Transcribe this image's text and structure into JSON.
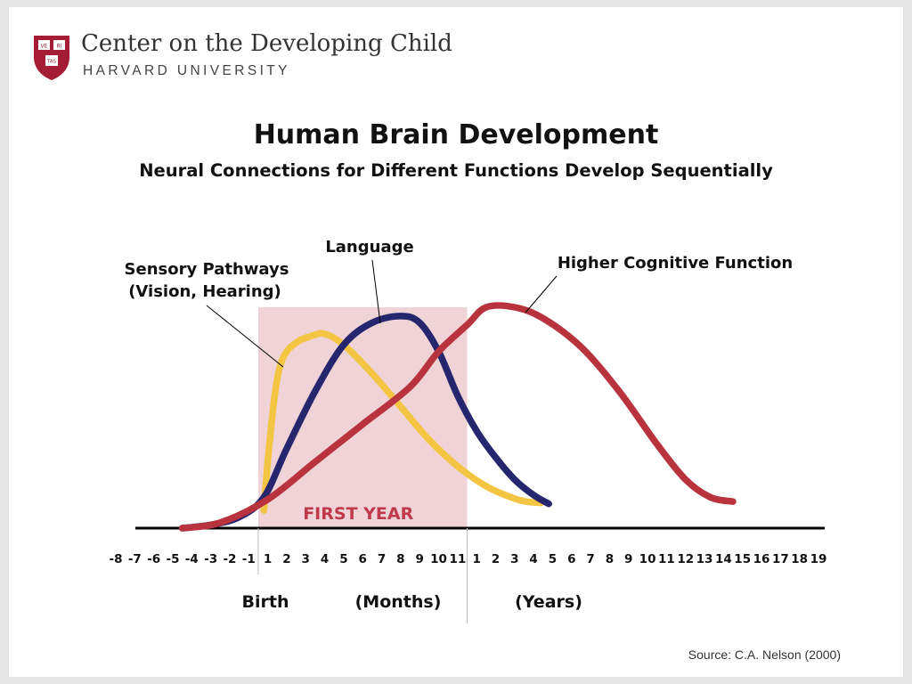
{
  "header": {
    "org_name": "Center on the Developing Child",
    "org_sub": "HARVARD UNIVERSITY",
    "shield_text": [
      "VE",
      "RI",
      "TAS"
    ]
  },
  "source": "Source: C.A. Nelson (2000)",
  "colors": {
    "sensory": "#f4c542",
    "language": "#26266e",
    "cognitive": "#b8333d",
    "first_year_shade": "#efd3d6",
    "first_year_text": "#c0394a",
    "shield": "#a41d34"
  },
  "chart_data": {
    "type": "line",
    "title": "Human Brain Development",
    "subtitle": "Neural Connections for Different Functions Develop Sequentially",
    "x_ticks": [
      {
        "label": "-8",
        "group": "prenatal"
      },
      {
        "label": "-7",
        "group": "prenatal"
      },
      {
        "label": "-6",
        "group": "prenatal"
      },
      {
        "label": "-5",
        "group": "prenatal"
      },
      {
        "label": "-4",
        "group": "prenatal"
      },
      {
        "label": "-3",
        "group": "prenatal"
      },
      {
        "label": "-2",
        "group": "prenatal"
      },
      {
        "label": "-1",
        "group": "prenatal"
      },
      {
        "label": "1",
        "group": "months"
      },
      {
        "label": "2",
        "group": "months"
      },
      {
        "label": "3",
        "group": "months"
      },
      {
        "label": "4",
        "group": "months"
      },
      {
        "label": "5",
        "group": "months"
      },
      {
        "label": "6",
        "group": "months"
      },
      {
        "label": "7",
        "group": "months"
      },
      {
        "label": "8",
        "group": "months"
      },
      {
        "label": "9",
        "group": "months"
      },
      {
        "label": "10",
        "group": "months"
      },
      {
        "label": "11",
        "group": "months"
      },
      {
        "label": "1",
        "group": "years"
      },
      {
        "label": "2",
        "group": "years"
      },
      {
        "label": "3",
        "group": "years"
      },
      {
        "label": "4",
        "group": "years"
      },
      {
        "label": "5",
        "group": "years"
      },
      {
        "label": "6",
        "group": "years"
      },
      {
        "label": "7",
        "group": "years"
      },
      {
        "label": "8",
        "group": "years"
      },
      {
        "label": "9",
        "group": "years"
      },
      {
        "label": "10",
        "group": "years"
      },
      {
        "label": "11",
        "group": "years"
      },
      {
        "label": "12",
        "group": "years"
      },
      {
        "label": "13",
        "group": "years"
      },
      {
        "label": "14",
        "group": "years"
      },
      {
        "label": "15",
        "group": "years"
      },
      {
        "label": "16",
        "group": "years"
      },
      {
        "label": "17",
        "group": "years"
      },
      {
        "label": "18",
        "group": "years"
      },
      {
        "label": "19",
        "group": "years"
      }
    ],
    "axis_labels": {
      "birth": "Birth",
      "months": "(Months)",
      "years": "(Years)"
    },
    "shaded_region": {
      "label": "FIRST YEAR",
      "from_tick": 8,
      "to_tick": 19
    },
    "ylim": [
      0,
      100
    ],
    "series": [
      {
        "name": "Sensory Pathways",
        "name_line2": "(Vision, Hearing)",
        "color_key": "sensory",
        "points": [
          [
            7.8,
            8
          ],
          [
            8.0,
            30
          ],
          [
            8.4,
            62
          ],
          [
            8.8,
            77
          ],
          [
            9.5,
            84
          ],
          [
            10.3,
            87
          ],
          [
            11.0,
            88
          ],
          [
            12.0,
            83
          ],
          [
            13.5,
            70
          ],
          [
            15.0,
            55
          ],
          [
            16.5,
            40
          ],
          [
            18.0,
            28
          ],
          [
            19.5,
            19
          ],
          [
            20.8,
            14
          ],
          [
            21.6,
            12
          ],
          [
            22.4,
            11.5
          ]
        ]
      },
      {
        "name": "Language",
        "color_key": "language",
        "points": [
          [
            3.5,
            0
          ],
          [
            5.0,
            1.5
          ],
          [
            6.5,
            5
          ],
          [
            7.8,
            14
          ],
          [
            9.0,
            36
          ],
          [
            10.5,
            62
          ],
          [
            12.0,
            83
          ],
          [
            13.5,
            93
          ],
          [
            15.0,
            96
          ],
          [
            16.0,
            93
          ],
          [
            17.0,
            80
          ],
          [
            18.0,
            60
          ],
          [
            19.0,
            44
          ],
          [
            20.0,
            32
          ],
          [
            21.0,
            22
          ],
          [
            22.0,
            15
          ],
          [
            22.8,
            11
          ]
        ]
      },
      {
        "name": "Higher Cognitive Function",
        "color_key": "cognitive",
        "points": [
          [
            3.5,
            0
          ],
          [
            5.5,
            2.5
          ],
          [
            8.0,
            13
          ],
          [
            10.5,
            30
          ],
          [
            13.0,
            47
          ],
          [
            15.5,
            64
          ],
          [
            17.0,
            80
          ],
          [
            18.5,
            92
          ],
          [
            19.5,
            100
          ],
          [
            21.0,
            100
          ],
          [
            22.5,
            95
          ],
          [
            24.5,
            82
          ],
          [
            26.5,
            62
          ],
          [
            28.5,
            38
          ],
          [
            30.0,
            22
          ],
          [
            31.3,
            14
          ],
          [
            32.5,
            12
          ]
        ]
      }
    ]
  }
}
